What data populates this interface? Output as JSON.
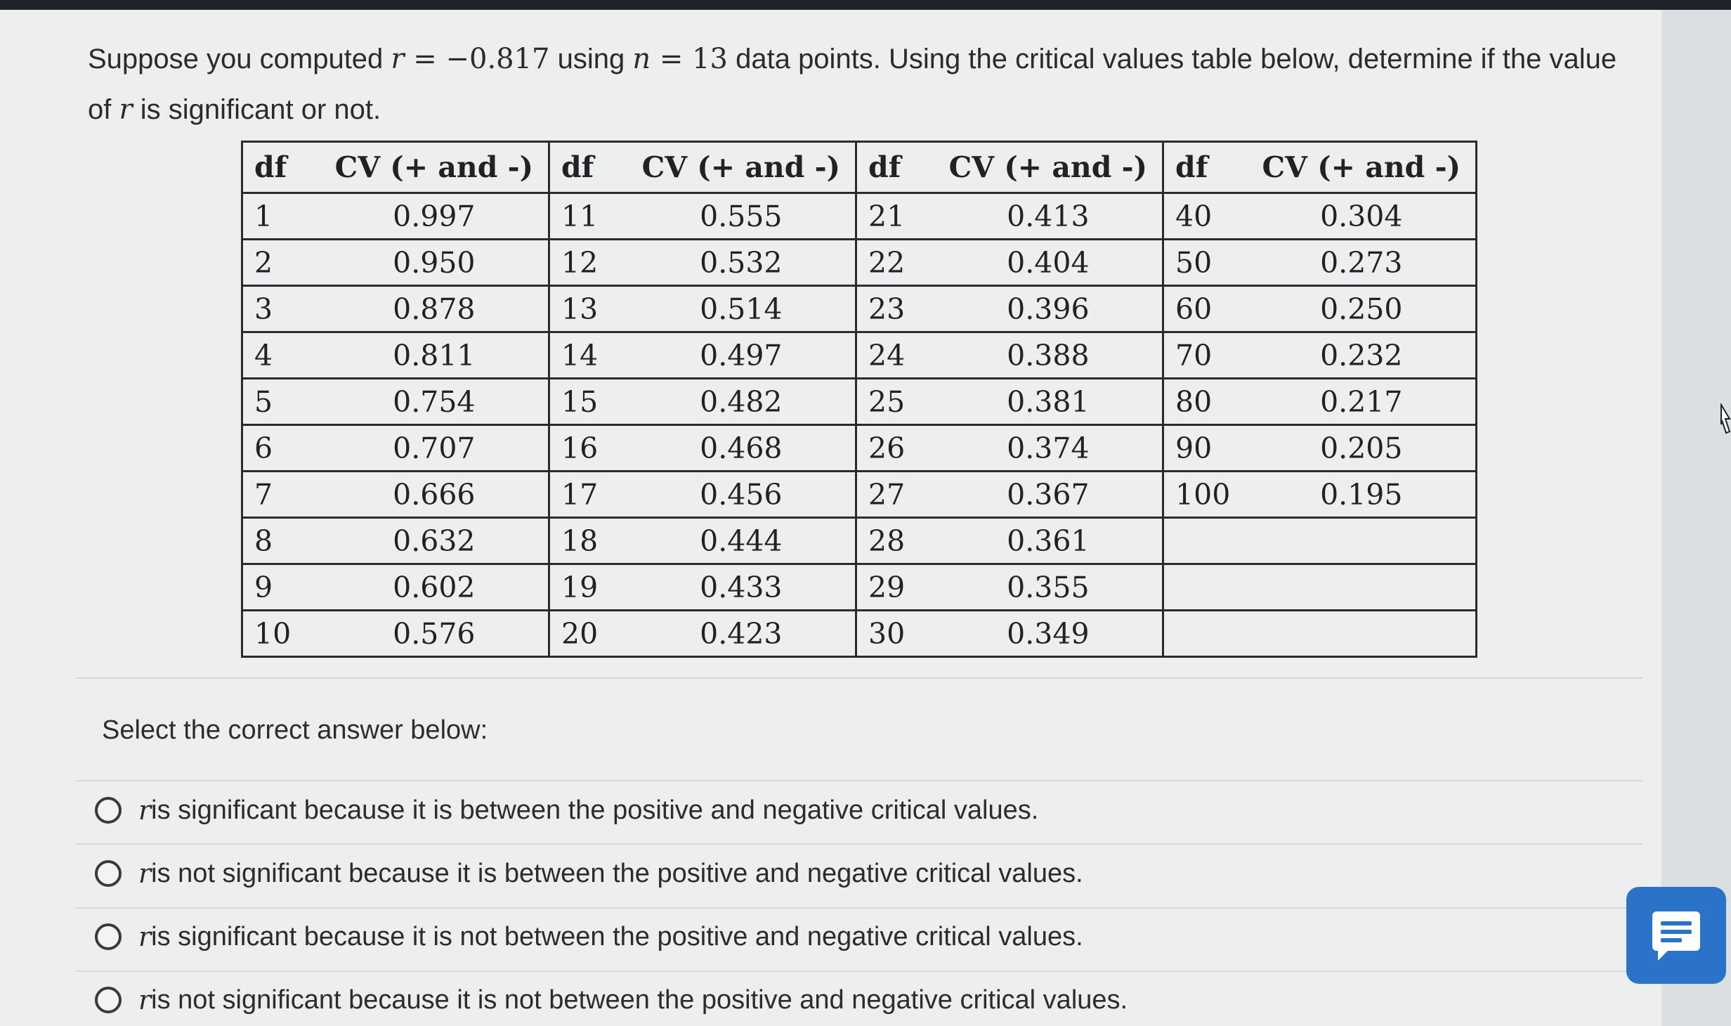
{
  "question": {
    "prefix": "Suppose you computed ",
    "r_symbol": "r",
    "r_equals": " = −0.817",
    "using_text": " using ",
    "n_symbol": "n",
    "n_equals": " = 13",
    "suffix": " data points. Using the critical values table below, determine if the value",
    "line2_prefix": "of ",
    "line2_suffix": " is significant or not."
  },
  "table": {
    "headers": [
      "df",
      "CV (+ and -)",
      "df",
      "CV (+ and -)",
      "df",
      "CV (+ and -)",
      "df",
      "CV (+ and -)"
    ],
    "rows": [
      [
        "1",
        "0.997",
        "11",
        "0.555",
        "21",
        "0.413",
        "40",
        "0.304"
      ],
      [
        "2",
        "0.950",
        "12",
        "0.532",
        "22",
        "0.404",
        "50",
        "0.273"
      ],
      [
        "3",
        "0.878",
        "13",
        "0.514",
        "23",
        "0.396",
        "60",
        "0.250"
      ],
      [
        "4",
        "0.811",
        "14",
        "0.497",
        "24",
        "0.388",
        "70",
        "0.232"
      ],
      [
        "5",
        "0.754",
        "15",
        "0.482",
        "25",
        "0.381",
        "80",
        "0.217"
      ],
      [
        "6",
        "0.707",
        "16",
        "0.468",
        "26",
        "0.374",
        "90",
        "0.205"
      ],
      [
        "7",
        "0.666",
        "17",
        "0.456",
        "27",
        "0.367",
        "100",
        "0.195"
      ],
      [
        "8",
        "0.632",
        "18",
        "0.444",
        "28",
        "0.361",
        "",
        ""
      ],
      [
        "9",
        "0.602",
        "19",
        "0.433",
        "29",
        "0.355",
        "",
        ""
      ],
      [
        "10",
        "0.576",
        "20",
        "0.423",
        "30",
        "0.349",
        "",
        ""
      ]
    ]
  },
  "prompt": "Select the correct answer below:",
  "options": [
    {
      "symbol": "r",
      "text": " is significant because it is between the positive and negative critical values."
    },
    {
      "symbol": "r",
      "text": " is not significant because it is between the positive and negative critical values."
    },
    {
      "symbol": "r",
      "text": " is significant because it is not between the positive and negative critical values."
    },
    {
      "symbol": "r",
      "text": " is not significant because it is not between the positive and negative critical values."
    }
  ],
  "icons": {
    "chat": "chat-icon",
    "cursor": "cursor-icon"
  },
  "colors": {
    "chat_button": "#2a73c9",
    "page_background": "#eceeef"
  }
}
